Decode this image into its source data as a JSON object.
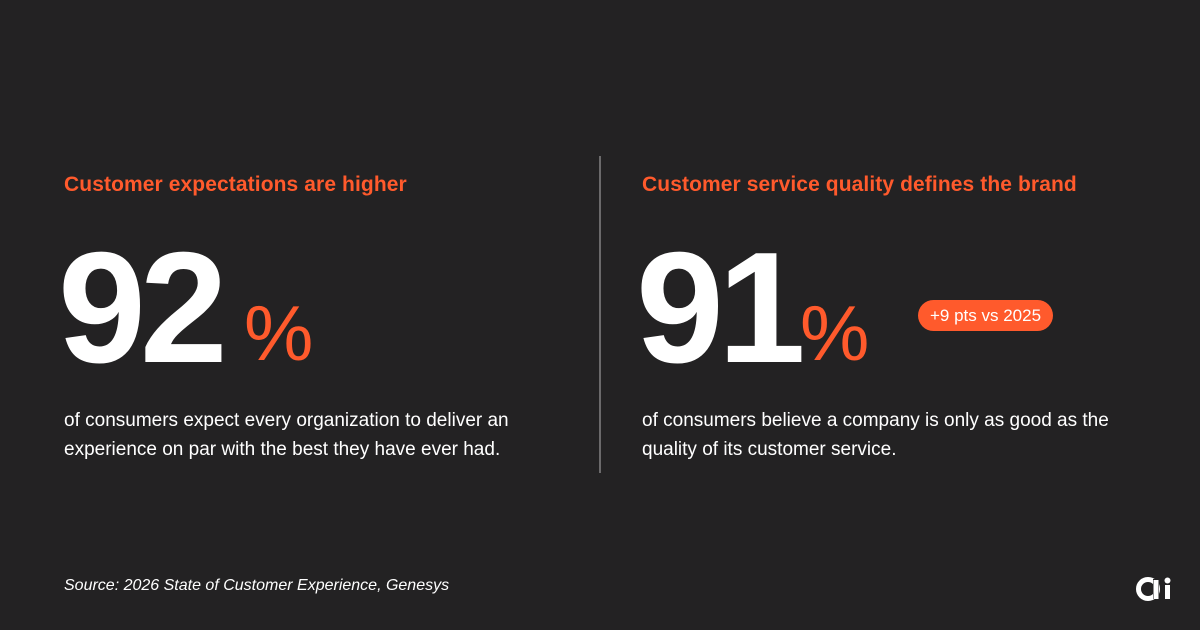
{
  "colors": {
    "background": "#232223",
    "accent": "#ff5a2c",
    "text": "#ffffff",
    "divider": "#6b6a6b"
  },
  "left": {
    "heading": "Customer expectations are higher",
    "number": "92",
    "percent_sign": "%",
    "description": "of consumers expect every organization to deliver an experience on par with the best they have ever had."
  },
  "right": {
    "heading": "Customer service quality defines the brand",
    "number": "91",
    "percent_sign": "%",
    "badge": "+9 pts vs 2025",
    "description": "of consumers believe a company is only as good as the quality of its customer service."
  },
  "footer": {
    "source": "Source: 2026 State of Customer Experience, Genesys",
    "logo_icon": "brand-logo-icon"
  }
}
